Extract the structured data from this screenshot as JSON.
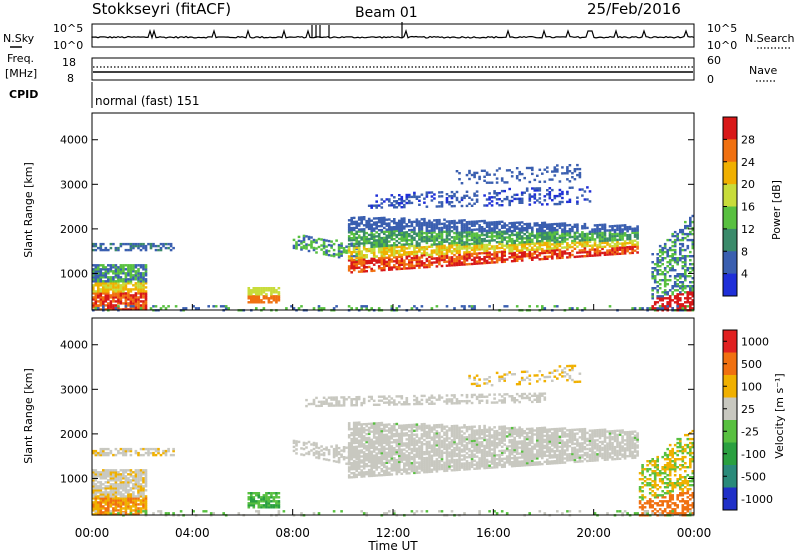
{
  "header": {
    "station": "Stokkseyri (fitACF)",
    "beam": "Beam 01",
    "date": "25/Feb/2016"
  },
  "noise_panel": {
    "left_label": "N.Sky",
    "right_label": "N.Search",
    "left_ticks": [
      "10^5",
      "10^0"
    ],
    "right_ticks": [
      "10^5",
      "10^0"
    ]
  },
  "freq_panel": {
    "label_line1": "Freq.",
    "label_line2": "[MHz]",
    "left_ticks": [
      "18",
      "8"
    ],
    "right_ticks": [
      "60",
      "0"
    ],
    "right_label": "Nave"
  },
  "cpid_panel": {
    "label": "CPID",
    "text": "normal (fast) 151"
  },
  "chart_data": [
    {
      "type": "heatmap",
      "name": "power",
      "ylabel": "Slant Range [km]",
      "yticks": [
        "1000",
        "2000",
        "3000",
        "4000"
      ],
      "ylim": [
        180,
        4600
      ],
      "colorbar_label": "Power [dB]",
      "colorbar_ticks": [
        "4",
        "8",
        "12",
        "16",
        "20",
        "24",
        "28"
      ],
      "colorbar_colors": [
        "#1f2fd8",
        "#3a5fb0",
        "#3a8a6a",
        "#58c040",
        "#c8dc3a",
        "#f0b000",
        "#f07010",
        "#d81818"
      ]
    },
    {
      "type": "heatmap",
      "name": "velocity",
      "ylabel": "Slant Range [km]",
      "yticks": [
        "1000",
        "2000",
        "3000",
        "4000"
      ],
      "ylim": [
        180,
        4600
      ],
      "colorbar_label": "Velocity [m s⁻¹]",
      "colorbar_ticks": [
        "1000",
        "500",
        "100",
        "25",
        "-25",
        "-100",
        "-500",
        "-1000"
      ],
      "colorbar_colors": [
        "#2030c8",
        "#2a8a7a",
        "#2aa040",
        "#58c040",
        "#c8c8c0",
        "#f0b000",
        "#f07010",
        "#e02020"
      ]
    }
  ],
  "x_axis": {
    "ticks": [
      "00:00",
      "04:00",
      "08:00",
      "12:00",
      "16:00",
      "20:00",
      "00:00"
    ],
    "label": "Time UT"
  }
}
